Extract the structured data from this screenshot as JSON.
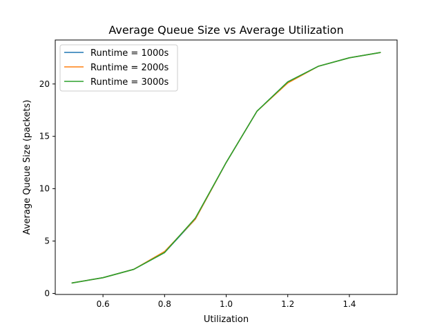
{
  "chart_data": {
    "type": "line",
    "title": "Average Queue Size vs Average Utilization",
    "xlabel": "Utilization",
    "ylabel": "Average Queue Size (packets)",
    "xlim": [
      0.445,
      1.555
    ],
    "ylim": [
      -0.1,
      24.2
    ],
    "x_ticks": [
      "0.6",
      "0.8",
      "1.0",
      "1.2",
      "1.4"
    ],
    "x_tick_values": [
      0.6,
      0.8,
      1.0,
      1.2,
      1.4
    ],
    "y_ticks": [
      "0",
      "5",
      "10",
      "15",
      "20"
    ],
    "y_tick_values": [
      0,
      5,
      10,
      15,
      20
    ],
    "grid": false,
    "legend_position": "upper-left",
    "x": [
      0.5,
      0.6,
      0.7,
      0.8,
      0.9,
      1.0,
      1.1,
      1.2,
      1.3,
      1.4,
      1.5
    ],
    "series": [
      {
        "name": "Runtime = 1000s",
        "color": "#1f77b4",
        "values": [
          1.0,
          1.5,
          2.3,
          3.9,
          7.1,
          12.5,
          17.4,
          20.2,
          21.7,
          22.5,
          23.0
        ]
      },
      {
        "name": "Runtime = 2000s",
        "color": "#ff7f0e",
        "values": [
          1.0,
          1.5,
          2.3,
          4.0,
          7.1,
          12.5,
          17.4,
          20.1,
          21.7,
          22.5,
          23.0
        ]
      },
      {
        "name": "Runtime = 3000s",
        "color": "#2ca02c",
        "values": [
          1.0,
          1.5,
          2.3,
          3.9,
          7.2,
          12.5,
          17.4,
          20.2,
          21.7,
          22.5,
          23.0
        ]
      }
    ]
  }
}
